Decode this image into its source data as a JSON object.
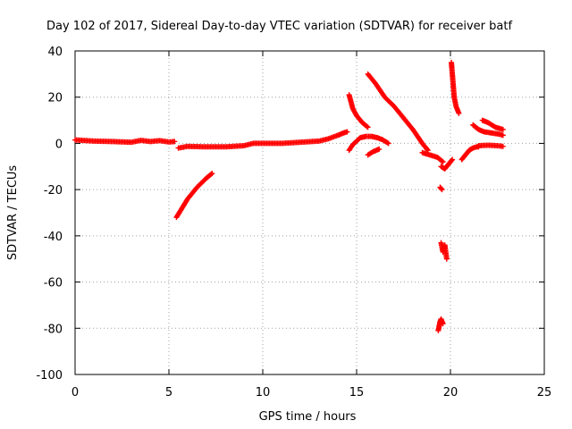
{
  "chart_data": {
    "type": "scatter",
    "title": "Day 102 of 2017, Sidereal Day-to-day VTEC variation (SDTVAR) for receiver batf",
    "xlabel": "GPS time / hours",
    "ylabel": "SDTVAR / TECUs",
    "xlim": [
      0,
      25
    ],
    "ylim": [
      -100,
      40
    ],
    "xticks": [
      0,
      5,
      10,
      15,
      20,
      25
    ],
    "yticks": [
      40,
      20,
      0,
      -20,
      -40,
      -60,
      -80,
      -100
    ],
    "xtick_labels": [
      "0",
      "5",
      "10",
      "15",
      "20",
      "25"
    ],
    "ytick_labels": [
      "40",
      "20",
      "0",
      "-20",
      "-40",
      "-60",
      "-80",
      "-100"
    ],
    "grid": true,
    "marker": "+",
    "color": "#ff0000",
    "segments": [
      {
        "x": [
          0,
          1,
          2,
          3,
          3.5,
          4,
          4.5,
          5,
          5.3
        ],
        "y": [
          1.5,
          1,
          0.8,
          0.5,
          1.3,
          0.8,
          1.2,
          0.6,
          0.8
        ]
      },
      {
        "x": [
          5.5,
          6,
          7,
          8,
          9,
          9.5,
          10,
          11,
          12,
          13,
          13.5,
          14,
          14.3,
          14.5
        ],
        "y": [
          -2,
          -1.3,
          -1.5,
          -1.5,
          -1,
          0,
          0,
          0,
          0.5,
          1,
          2,
          3.5,
          4.5,
          5
        ]
      },
      {
        "x": [
          5.4,
          6,
          6.5,
          7,
          7.3
        ],
        "y": [
          -32,
          -24,
          -19,
          -15,
          -13
        ]
      },
      {
        "x": [
          14.6,
          14.8,
          15,
          15.3,
          15.6
        ],
        "y": [
          21,
          15,
          12,
          9,
          7
        ]
      },
      {
        "x": [
          14.6,
          14.8,
          15,
          15.2,
          15.5,
          15.8,
          16.1,
          16.4,
          16.7
        ],
        "y": [
          -3,
          -0.5,
          1,
          2.5,
          3,
          3,
          2.5,
          1.5,
          0
        ]
      },
      {
        "x": [
          15.6,
          15.9,
          16.2
        ],
        "y": [
          -5,
          -3.5,
          -2.5
        ]
      },
      {
        "x": [
          15.6,
          16,
          16.5,
          17,
          17.5,
          18,
          18.5,
          18.8
        ],
        "y": [
          30,
          26,
          20,
          16,
          11,
          6,
          0,
          -3
        ]
      },
      {
        "x": [
          18.5,
          18.9,
          19.3,
          19.6
        ],
        "y": [
          -4,
          -5,
          -6,
          -8
        ]
      },
      {
        "x": [
          19.35,
          19.4,
          19.45,
          19.5,
          19.6
        ],
        "y": [
          -81,
          -79,
          -77,
          -76,
          -78
        ]
      },
      {
        "x": [
          19.5,
          19.6,
          19.7,
          19.8
        ],
        "y": [
          -43,
          -47,
          -44,
          -50
        ]
      },
      {
        "x": [
          19.45,
          19.55
        ],
        "y": [
          -19,
          -20
        ]
      },
      {
        "x": [
          19.5,
          19.7,
          19.9,
          20.1
        ],
        "y": [
          -10,
          -11,
          -9,
          -7
        ]
      },
      {
        "x": [
          20.05,
          20.1,
          20.15,
          20.2,
          20.3,
          20.45
        ],
        "y": [
          35,
          30,
          25,
          20,
          16,
          13
        ]
      },
      {
        "x": [
          20.6,
          20.8,
          21,
          21.2,
          21.4,
          21.5
        ],
        "y": [
          -7,
          -5,
          -3,
          -2,
          -1.5,
          -1.5
        ]
      },
      {
        "x": [
          21.5,
          22,
          22.5,
          22.8
        ],
        "y": [
          -1,
          -0.8,
          -1,
          -1.3
        ]
      },
      {
        "x": [
          21.2,
          21.5,
          21.8,
          22.2,
          22.6,
          22.8
        ],
        "y": [
          8,
          6,
          5,
          4.5,
          4,
          3.5
        ]
      },
      {
        "x": [
          21.7,
          22,
          22.4,
          22.8
        ],
        "y": [
          10,
          9,
          7,
          6
        ]
      }
    ]
  }
}
